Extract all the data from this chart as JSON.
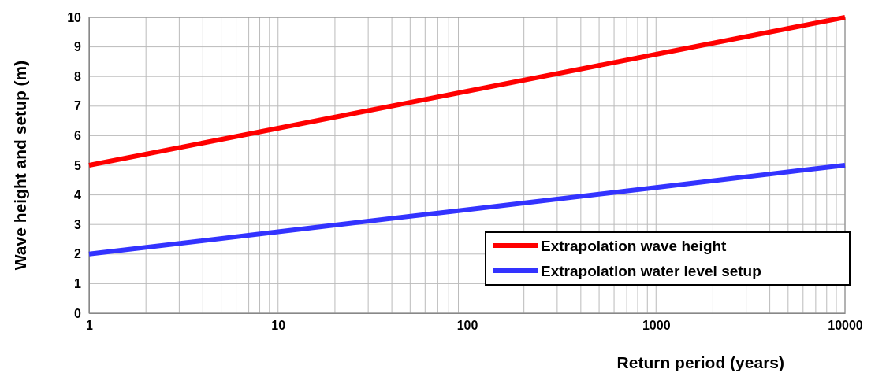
{
  "chart_data": {
    "type": "line",
    "xlabel": "Return period (years)",
    "ylabel": "Wave height and setup (m)",
    "x": [
      1,
      10,
      100,
      1000,
      10000
    ],
    "series": [
      {
        "name": "Extrapolation wave height",
        "color": "#ff0000",
        "values": [
          5,
          6.25,
          7.5,
          8.75,
          10
        ]
      },
      {
        "name": "Extrapolation water level setup",
        "color": "#3333ff",
        "values": [
          2,
          2.75,
          3.5,
          4.25,
          5
        ]
      }
    ],
    "log": "x",
    "xlim": [
      1,
      10000
    ],
    "ylim": [
      0,
      10
    ],
    "xticks": [
      1,
      {
        "value": 2,
        "label": null
      },
      {
        "value": 3,
        "label": null
      },
      {
        "value": 4,
        "label": null
      },
      {
        "value": 5,
        "label": null
      },
      {
        "value": 6,
        "label": null
      },
      {
        "value": 7,
        "label": null
      },
      {
        "value": 8,
        "label": null
      },
      {
        "value": 9,
        "label": null
      },
      10,
      {
        "value": 20,
        "label": null
      },
      {
        "value": 30,
        "label": null
      },
      {
        "value": 40,
        "label": null
      },
      {
        "value": 50,
        "label": null
      },
      {
        "value": 60,
        "label": null
      },
      {
        "value": 70,
        "label": null
      },
      {
        "value": 80,
        "label": null
      },
      {
        "value": 90,
        "label": null
      },
      100,
      {
        "value": 200,
        "label": null
      },
      {
        "value": 300,
        "label": null
      },
      {
        "value": 400,
        "label": null
      },
      {
        "value": 500,
        "label": null
      },
      {
        "value": 600,
        "label": null
      },
      {
        "value": 700,
        "label": null
      },
      {
        "value": 800,
        "label": null
      },
      {
        "value": 900,
        "label": null
      },
      1000,
      {
        "value": 2000,
        "label": null
      },
      {
        "value": 3000,
        "label": null
      },
      {
        "value": 4000,
        "label": null
      },
      {
        "value": 5000,
        "label": null
      },
      {
        "value": 6000,
        "label": null
      },
      {
        "value": 7000,
        "label": null
      },
      {
        "value": 8000,
        "label": null
      },
      {
        "value": 9000,
        "label": null
      },
      10000
    ],
    "yticks": [
      0,
      1,
      2,
      3,
      4,
      5,
      6,
      7,
      8,
      9,
      10
    ],
    "grid": true,
    "legend": "bottom right",
    "marker": "none",
    "line_style": "solid"
  }
}
